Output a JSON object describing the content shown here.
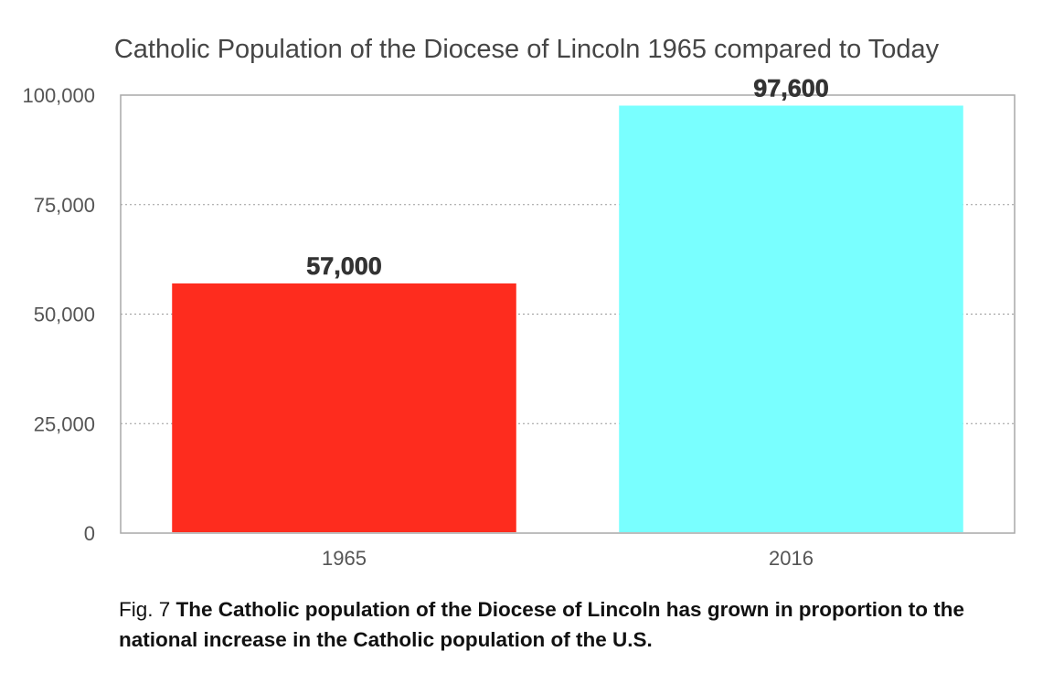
{
  "chart_data": {
    "type": "bar",
    "title": "Catholic Population of the Diocese of Lincoln 1965 compared to Today",
    "categories": [
      "1965",
      "2016"
    ],
    "values": [
      57000,
      97600
    ],
    "data_labels": [
      "57,000",
      "97,600"
    ],
    "colors": [
      "#fe2c1e",
      "#79ffff"
    ],
    "ylim": [
      0,
      100000
    ],
    "yticks": [
      0,
      25000,
      50000,
      75000,
      100000
    ],
    "ytick_labels": [
      "0",
      "25,000",
      "50,000",
      "75,000",
      "100,000"
    ],
    "grid": true,
    "legend": "none"
  },
  "caption": {
    "prefix": "Fig. 7",
    "text": "The Catholic population of the Diocese of Lincoln has grown in proportion to the national increase in the Catholic population of the U.S."
  }
}
